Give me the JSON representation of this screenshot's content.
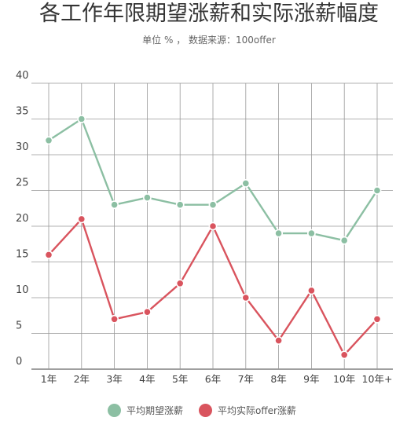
{
  "chart_data": {
    "type": "line",
    "title": "各工作年限期望涨薪和实际涨薪幅度",
    "subtitle": "单位 % ， 数据来源：100offer",
    "categories": [
      "1年",
      "2年",
      "3年",
      "4年",
      "5年",
      "6年",
      "7年",
      "8年",
      "9年",
      "10年",
      "10年+"
    ],
    "yticks": [
      "0",
      "5",
      "10",
      "15",
      "20",
      "25",
      "30",
      "35",
      "40"
    ],
    "ylim": [
      0,
      40
    ],
    "grid": true,
    "legend_position": "bottom",
    "series": [
      {
        "name": "平均期望涨薪",
        "color": "#8cbfa3",
        "values": [
          32,
          35,
          23,
          24,
          23,
          23,
          26,
          19,
          19,
          18,
          25
        ]
      },
      {
        "name": "平均实际offer涨薪",
        "color": "#d9545e",
        "values": [
          16,
          21,
          7,
          8,
          12,
          20,
          10,
          4,
          11,
          2,
          7
        ]
      }
    ]
  }
}
